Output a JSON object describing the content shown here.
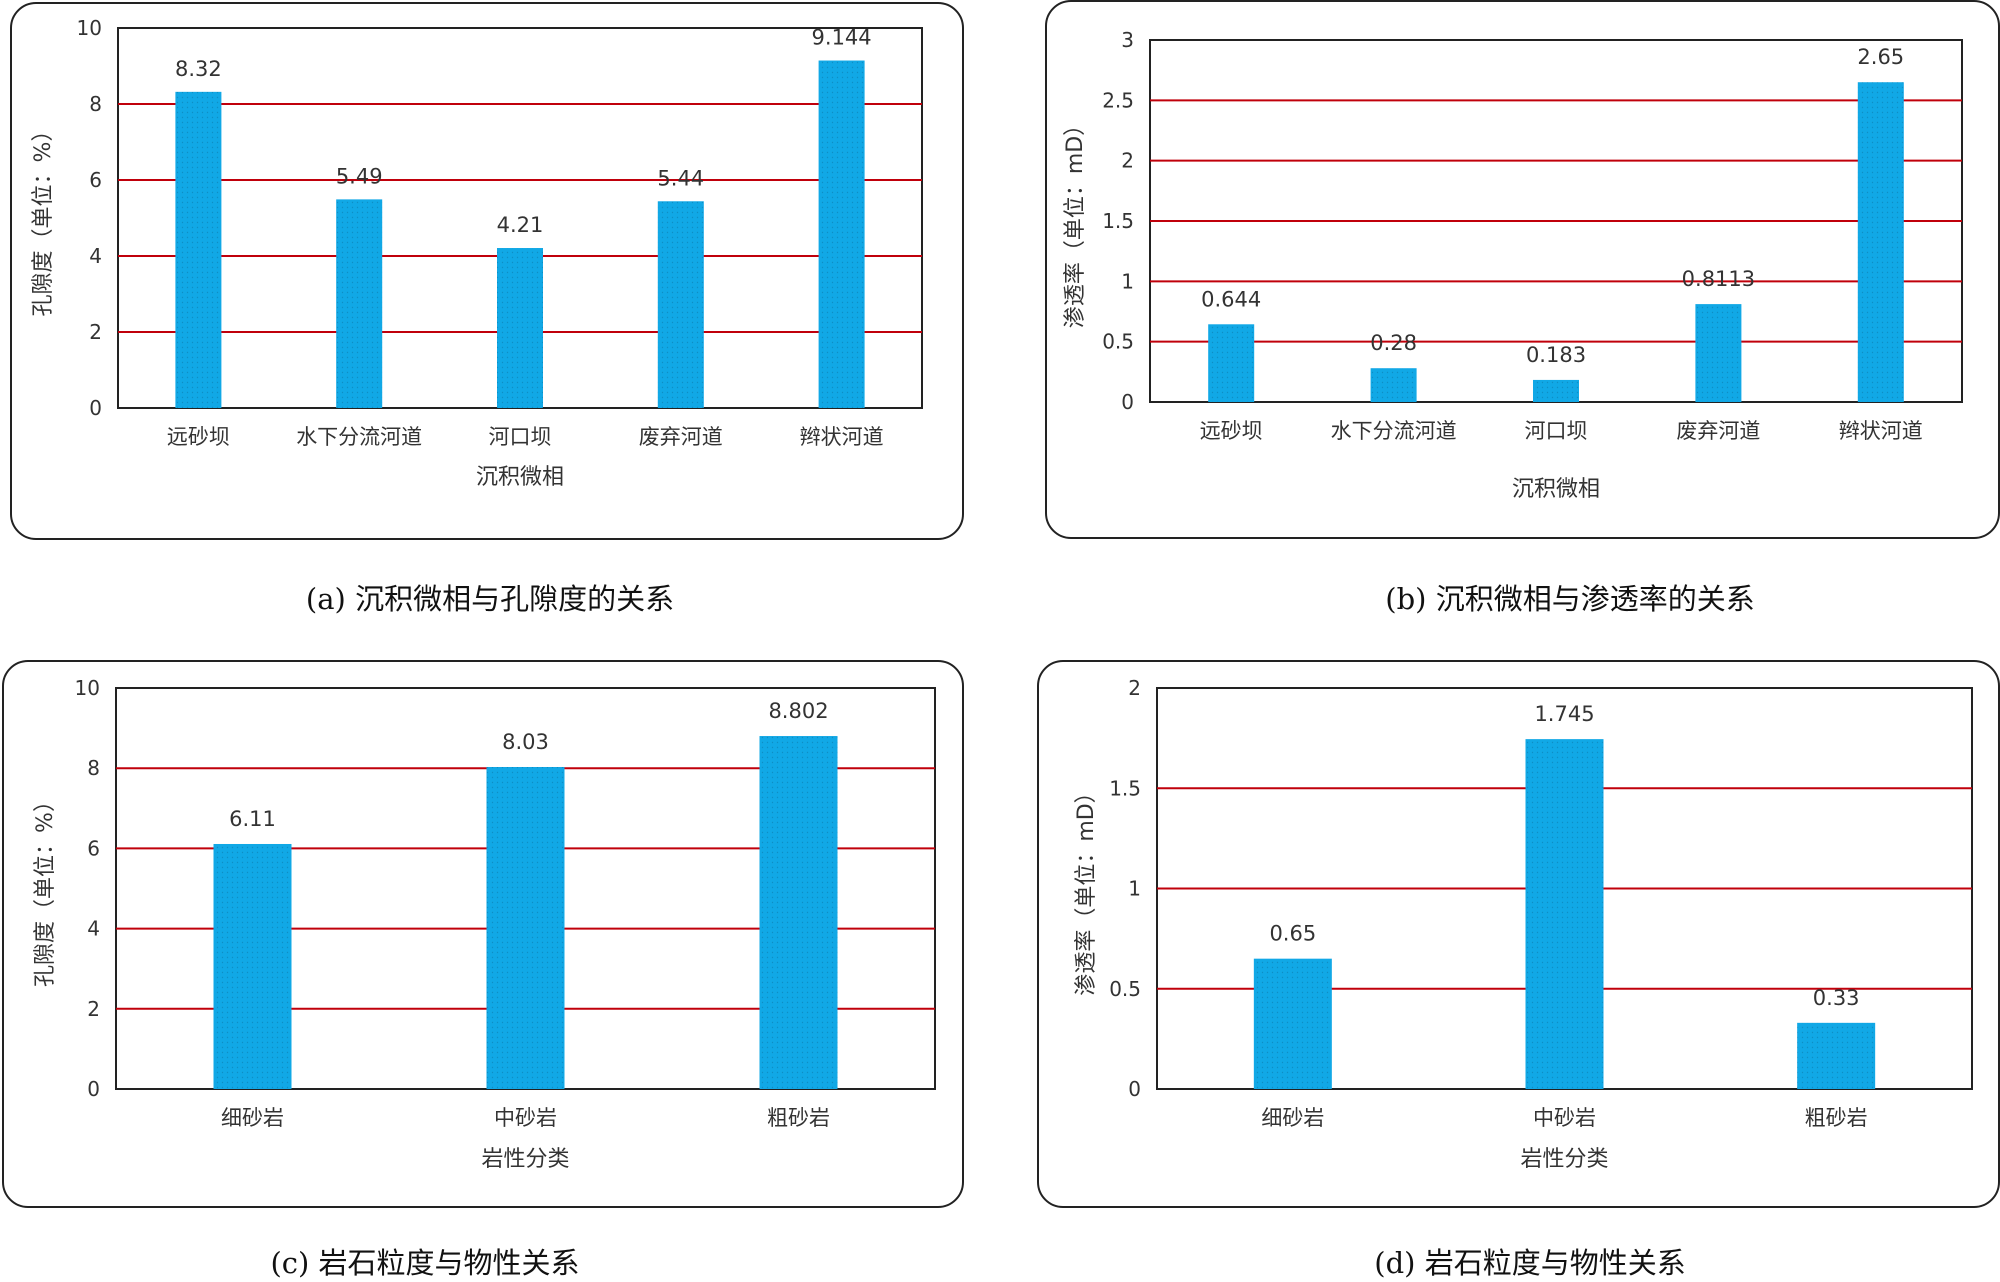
{
  "figures": [
    {
      "caption": "(a) 沉积微相与孔隙度的关系"
    },
    {
      "caption": "(b) 沉积微相与渗透率的关系"
    },
    {
      "caption": "(c) 岩石粒度与物性关系"
    },
    {
      "caption": "(d) 岩石粒度与物性关系"
    }
  ],
  "colors": {
    "bar": "#11a8e6",
    "bar_dots": "#0a78a8",
    "grid": "#c0000b",
    "frame": "#222222"
  },
  "chart_data": [
    {
      "type": "bar",
      "categories": [
        "远砂坝",
        "水下分流河道",
        "河口坝",
        "废弃河道",
        "辫状河道"
      ],
      "values": [
        8.32,
        5.49,
        4.21,
        5.44,
        9.144
      ],
      "value_labels": [
        "8.32",
        "5.49",
        "4.21",
        "5.44",
        "9.144"
      ],
      "yticks": [
        "0",
        "2",
        "4",
        "6",
        "8",
        "10"
      ],
      "ylim": [
        0,
        10
      ],
      "xlabel": "沉积微相",
      "ylabel": "孔隙度（单位：%）",
      "grid": true,
      "legend": "none"
    },
    {
      "type": "bar",
      "categories": [
        "远砂坝",
        "水下分流河道",
        "河口坝",
        "废弃河道",
        "辫状河道"
      ],
      "values": [
        0.644,
        0.28,
        0.183,
        0.8113,
        2.65
      ],
      "value_labels": [
        "0.644",
        "0.28",
        "0.183",
        "0.8113",
        "2.65"
      ],
      "yticks": [
        "0",
        "0.5",
        "1",
        "1.5",
        "2",
        "2.5",
        "3"
      ],
      "ylim": [
        0,
        3
      ],
      "xlabel": "沉积微相",
      "ylabel": "渗透率（单位：mD）",
      "grid": true,
      "legend": "none"
    },
    {
      "type": "bar",
      "categories": [
        "细砂岩",
        "中砂岩",
        "粗砂岩"
      ],
      "values": [
        6.11,
        8.03,
        8.802
      ],
      "value_labels": [
        "6.11",
        "8.03",
        "8.802"
      ],
      "yticks": [
        "0",
        "2",
        "4",
        "6",
        "8",
        "10"
      ],
      "ylim": [
        0,
        10
      ],
      "xlabel": "岩性分类",
      "ylabel": "孔隙度（单位：%）",
      "grid": true,
      "legend": "none"
    },
    {
      "type": "bar",
      "categories": [
        "细砂岩",
        "中砂岩",
        "粗砂岩"
      ],
      "values": [
        0.65,
        1.745,
        0.33
      ],
      "value_labels": [
        "0.65",
        "1.745",
        "0.33"
      ],
      "yticks": [
        "0",
        "0.5",
        "1",
        "1.5",
        "2"
      ],
      "ylim": [
        0,
        2
      ],
      "xlabel": "岩性分类",
      "ylabel": "渗透率（单位：mD）",
      "grid": true,
      "legend": "none"
    }
  ]
}
